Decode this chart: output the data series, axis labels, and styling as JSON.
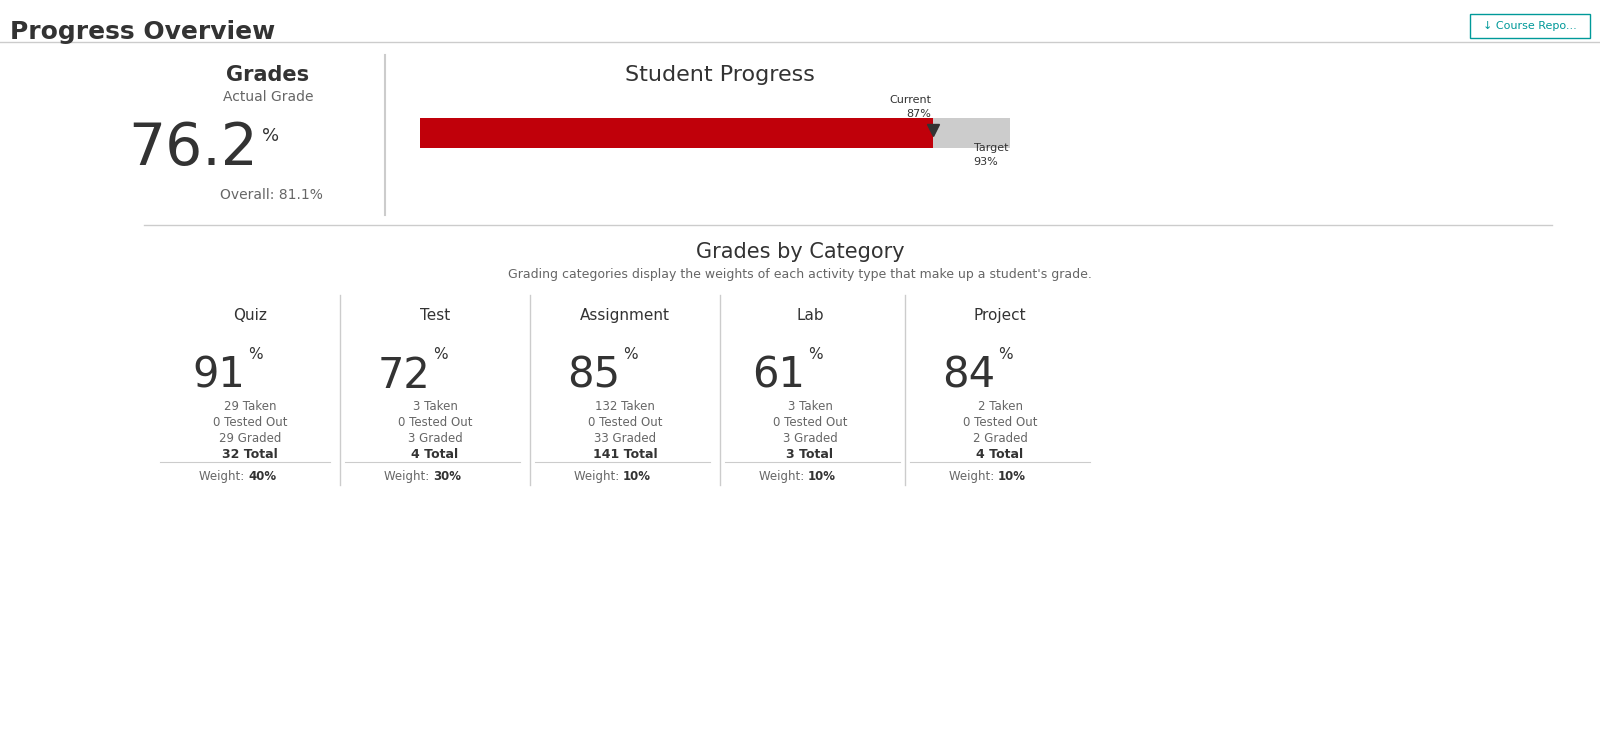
{
  "bg_color": "#ffffff",
  "title_main": "Progress Overview",
  "btn_text": "↓ Course Repo...",
  "grades_label": "Grades",
  "actual_grade_label": "Actual Grade",
  "actual_grade_value": "76.2",
  "overall_label": "Overall: 81.1%",
  "student_progress_title": "Student Progress",
  "current_pct": 87,
  "target_pct": 93,
  "bar_color": "#c0000a",
  "bar_bg_color": "#cccccc",
  "section2_title": "Grades by Category",
  "section2_subtitle": "Grading categories display the weights of each activity type that make up a student's grade.",
  "categories": [
    "Quiz",
    "Test",
    "Assignment",
    "Lab",
    "Project"
  ],
  "grades": [
    91,
    72,
    85,
    61,
    84
  ],
  "taken": [
    29,
    3,
    132,
    3,
    2
  ],
  "tested_out": [
    0,
    0,
    0,
    0,
    0
  ],
  "graded": [
    29,
    3,
    33,
    3,
    2
  ],
  "total": [
    32,
    4,
    141,
    3,
    4
  ],
  "weights": [
    "40%",
    "30%",
    "10%",
    "10%",
    "10%"
  ],
  "divider_color": "#cccccc",
  "text_dark": "#333333",
  "text_mid": "#666666",
  "text_light": "#888888",
  "teal_color": "#009999"
}
